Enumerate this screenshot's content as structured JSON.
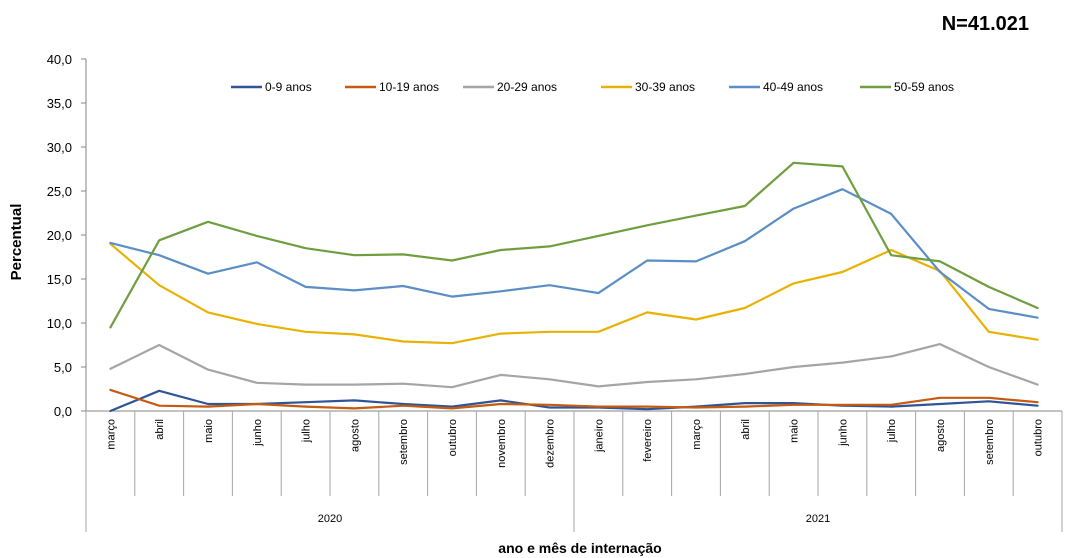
{
  "chart_data": {
    "type": "line",
    "annotation": "N=41.021",
    "ylabel": "Percentual",
    "xlabel": "ano e mês de internação",
    "ylim": [
      0,
      40
    ],
    "yticks": [
      "0,0",
      "5,0",
      "10,0",
      "15,0",
      "20,0",
      "25,0",
      "30,0",
      "35,0",
      "40,0"
    ],
    "grid": false,
    "legend_position": "top",
    "categories": [
      "março",
      "abril",
      "maio",
      "junho",
      "julho",
      "agosto",
      "setembro",
      "outubro",
      "novembro",
      "dezembro",
      "janeiro",
      "fevereiro",
      "março",
      "abril",
      "maio",
      "junho",
      "julho",
      "agosto",
      "setembro",
      "outubro"
    ],
    "groups": [
      {
        "label": "2020",
        "count": 10
      },
      {
        "label": "2021",
        "count": 10
      }
    ],
    "series": [
      {
        "name": "0-9 anos",
        "color": "#2f5597",
        "values": [
          0.0,
          2.3,
          0.8,
          0.8,
          1.0,
          1.2,
          0.8,
          0.5,
          1.2,
          0.4,
          0.4,
          0.2,
          0.5,
          0.9,
          0.9,
          0.6,
          0.5,
          0.8,
          1.1,
          0.6
        ]
      },
      {
        "name": "10-19 anos",
        "color": "#c55a11",
        "values": [
          2.4,
          0.6,
          0.5,
          0.8,
          0.5,
          0.3,
          0.6,
          0.3,
          0.8,
          0.7,
          0.5,
          0.5,
          0.4,
          0.5,
          0.7,
          0.7,
          0.7,
          1.5,
          1.5,
          1.0
        ]
      },
      {
        "name": "20-29 anos",
        "color": "#a5a5a5",
        "values": [
          4.8,
          7.5,
          4.7,
          3.2,
          3.0,
          3.0,
          3.1,
          2.7,
          4.1,
          3.6,
          2.8,
          3.3,
          3.6,
          4.2,
          5.0,
          5.5,
          6.2,
          7.6,
          5.0,
          3.0
        ]
      },
      {
        "name": "30-39 anos",
        "color": "#e8b203",
        "values": [
          19.0,
          14.3,
          11.2,
          9.9,
          9.0,
          8.7,
          7.9,
          7.7,
          8.8,
          9.0,
          9.0,
          11.2,
          10.4,
          11.7,
          14.5,
          15.8,
          18.3,
          15.9,
          9.0,
          8.1
        ]
      },
      {
        "name": "40-49 anos",
        "color": "#5b8ec4",
        "values": [
          19.1,
          17.7,
          15.6,
          16.9,
          14.1,
          13.7,
          14.2,
          13.0,
          13.6,
          14.3,
          13.4,
          17.1,
          17.0,
          19.3,
          23.0,
          25.2,
          22.4,
          15.8,
          11.6,
          10.6
        ]
      },
      {
        "name": "50-59 anos",
        "color": "#6f9e3f",
        "values": [
          9.5,
          19.4,
          21.5,
          19.9,
          18.5,
          17.7,
          17.8,
          17.1,
          18.3,
          18.7,
          19.9,
          21.1,
          22.2,
          23.3,
          28.2,
          27.8,
          17.7,
          17.0,
          14.1,
          11.7
        ]
      }
    ]
  }
}
